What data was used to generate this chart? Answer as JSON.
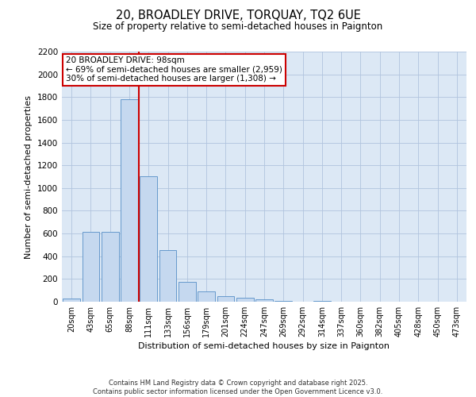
{
  "title_line1": "20, BROADLEY DRIVE, TORQUAY, TQ2 6UE",
  "title_line2": "Size of property relative to semi-detached houses in Paignton",
  "categories": [
    "20sqm",
    "43sqm",
    "65sqm",
    "88sqm",
    "111sqm",
    "133sqm",
    "156sqm",
    "179sqm",
    "201sqm",
    "224sqm",
    "247sqm",
    "269sqm",
    "292sqm",
    "314sqm",
    "337sqm",
    "360sqm",
    "382sqm",
    "405sqm",
    "428sqm",
    "450sqm",
    "473sqm"
  ],
  "values": [
    30,
    615,
    615,
    1780,
    1105,
    455,
    175,
    90,
    50,
    35,
    20,
    8,
    3,
    10,
    0,
    0,
    0,
    0,
    0,
    0,
    0
  ],
  "bar_color": "#c5d8ef",
  "bar_edge_color": "#6699cc",
  "ylabel": "Number of semi-detached properties",
  "xlabel": "Distribution of semi-detached houses by size in Paignton",
  "ylim": [
    0,
    2200
  ],
  "yticks": [
    0,
    200,
    400,
    600,
    800,
    1000,
    1200,
    1400,
    1600,
    1800,
    2000,
    2200
  ],
  "property_line_color": "#cc0000",
  "annotation_title": "20 BROADLEY DRIVE: 98sqm",
  "annotation_line1": "← 69% of semi-detached houses are smaller (2,959)",
  "annotation_line2": "30% of semi-detached houses are larger (1,308) →",
  "annotation_box_color": "#ffffff",
  "annotation_border_color": "#cc0000",
  "footer_line1": "Contains HM Land Registry data © Crown copyright and database right 2025.",
  "footer_line2": "Contains public sector information licensed under the Open Government Licence v3.0.",
  "background_color": "#ffffff",
  "plot_bg_color": "#dce8f5",
  "grid_color": "#b0c4de"
}
